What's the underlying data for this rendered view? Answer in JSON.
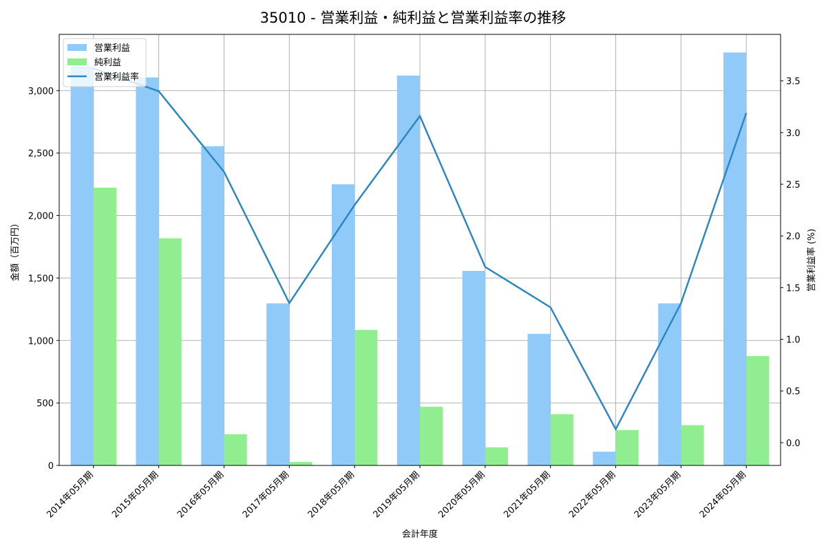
{
  "title": "35010 - 営業利益・純利益と営業利益率の推移",
  "chart_data": {
    "type": "bar+line",
    "title": "35010 - 営業利益・純利益と営業利益率の推移",
    "xlabel": "会計年度",
    "ylabel": "金額（百万円）",
    "ylabel_right": "営業利益率 (%)",
    "categories": [
      "2014年05月期",
      "2015年05月期",
      "2016年05月期",
      "2017年05月期",
      "2018年05月期",
      "2019年05月期",
      "2020年05月期",
      "2021年05月期",
      "2022年05月期",
      "2023年05月期",
      "2024年05月期"
    ],
    "series": [
      {
        "name": "営業利益",
        "type": "bar",
        "axis": "left",
        "color": "#90caf9",
        "values": [
          3195,
          3105,
          2555,
          1297,
          2250,
          3120,
          1557,
          1053,
          110,
          1297,
          3305
        ]
      },
      {
        "name": "純利益",
        "type": "bar",
        "axis": "left",
        "color": "#90ee90",
        "values": [
          2223,
          1818,
          250,
          28,
          1085,
          470,
          145,
          410,
          283,
          322,
          875
        ]
      },
      {
        "name": "営業利益率",
        "type": "line",
        "axis": "right",
        "color": "#2e86c1",
        "values": [
          3.62,
          3.4,
          2.62,
          1.35,
          2.3,
          3.16,
          1.7,
          1.31,
          0.13,
          1.35,
          3.19
        ]
      }
    ],
    "ylim": [
      0,
      3450
    ],
    "ylim_right": [
      -0.22,
      3.95
    ],
    "yticks": [
      0,
      500,
      1000,
      1500,
      2000,
      2500,
      3000
    ],
    "ytick_labels": [
      "0",
      "500",
      "1,000",
      "1,500",
      "2,000",
      "2,500",
      "3,000"
    ],
    "yticks_right": [
      0.0,
      0.5,
      1.0,
      1.5,
      2.0,
      2.5,
      3.0,
      3.5
    ],
    "ytick_labels_right": [
      "0.0",
      "0.5",
      "1.0",
      "1.5",
      "2.0",
      "2.5",
      "3.0",
      "3.5"
    ],
    "grid": true,
    "legend_position": "upper left"
  }
}
